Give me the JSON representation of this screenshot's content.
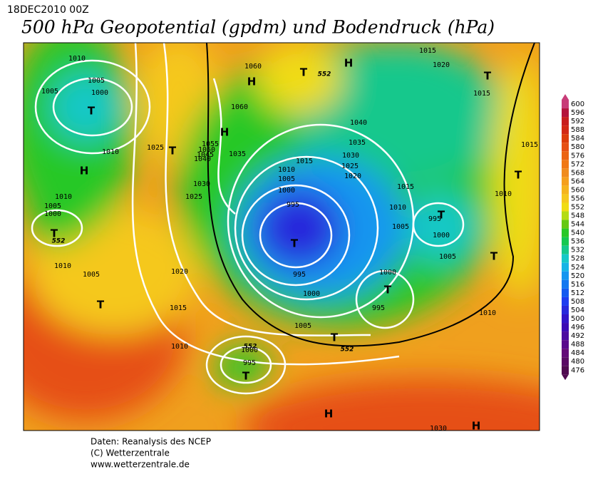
{
  "header": {
    "date": "18DEC2010 00Z",
    "title": "500 hPa Geopotential (gpdm) und Bodendruck (hPa)"
  },
  "footer": {
    "lines": [
      "Daten: Reanalysis des NCEP",
      "(C) Wetterzentrale",
      "www.wetterzentrale.de"
    ]
  },
  "colorbar": {
    "values": [
      600,
      596,
      592,
      588,
      584,
      580,
      576,
      572,
      568,
      564,
      560,
      556,
      552,
      548,
      544,
      540,
      536,
      532,
      528,
      524,
      520,
      516,
      512,
      508,
      504,
      500,
      496,
      492,
      488,
      484,
      480,
      476
    ],
    "colors": [
      "#c83c78",
      "#b4143c",
      "#c81e1e",
      "#d22814",
      "#dc3c0a",
      "#e65014",
      "#eb6414",
      "#f07814",
      "#f08c1e",
      "#f5a01e",
      "#f5b41e",
      "#f5c81e",
      "#f0dc14",
      "#b4dc14",
      "#64c814",
      "#28c828",
      "#14c850",
      "#14c88c",
      "#14c8c8",
      "#14b4e6",
      "#1496f0",
      "#1478f0",
      "#145af0",
      "#1e3cf0",
      "#2828dc",
      "#3214c8",
      "#3c0ab4",
      "#4b0aa0",
      "#5a0a8c",
      "#640a78",
      "#5a0a64",
      "#500a50"
    ]
  },
  "map": {
    "isobar_labels": [
      1010,
      1005,
      1000,
      1005,
      1010,
      1025,
      1060,
      1060,
      1055,
      1050,
      1045,
      1040,
      1035,
      1030,
      1025,
      1015,
      1010,
      1005,
      1000,
      995,
      995,
      1000,
      1040,
      1035,
      1030,
      1025,
      1020,
      1015,
      1010,
      1005,
      995,
      1000,
      1005,
      1000,
      995,
      1010,
      1010,
      1015,
      1015,
      1020,
      1015,
      1010,
      1005,
      1000,
      1010,
      1005,
      1020,
      1015,
      1010,
      1005,
      1000,
      995,
      1030
    ],
    "centers": [
      "T",
      "H",
      "T",
      "H",
      "H",
      "T",
      "H",
      "T",
      "T",
      "T",
      "T",
      "T",
      "T",
      "T",
      "T",
      "T",
      "T",
      "H",
      "H"
    ],
    "contour_labels": [
      552,
      552,
      552,
      552
    ]
  }
}
